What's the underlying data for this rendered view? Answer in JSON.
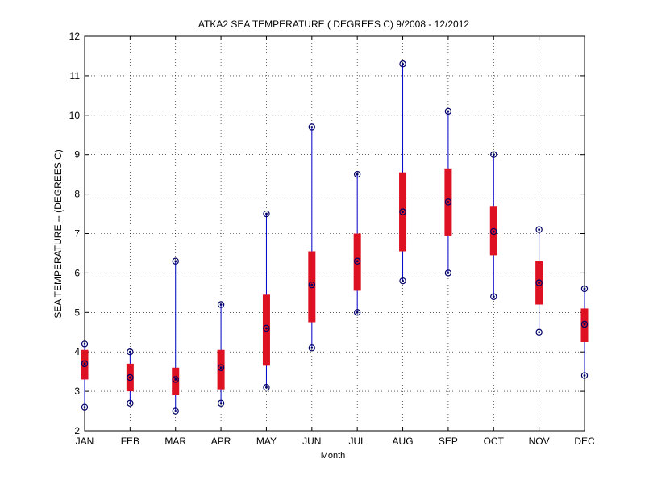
{
  "chart_data": {
    "type": "box",
    "title": "ATKA2  SEA TEMPERATURE ( DEGREES C) 9/2008 - 12/2012",
    "xlabel": "Month",
    "ylabel": "SEA TEMPERATURE -- (DEGREES C)",
    "ylim": [
      2,
      12
    ],
    "yticks": [
      "2",
      "3",
      "4",
      "5",
      "6",
      "7",
      "8",
      "9",
      "10",
      "11",
      "12"
    ],
    "grid": true,
    "categories": [
      "JAN",
      "FEB",
      "MAR",
      "APR",
      "MAY",
      "JUN",
      "JUL",
      "AUG",
      "SEP",
      "OCT",
      "NOV",
      "DEC"
    ],
    "series": [
      {
        "min": [
          2.6,
          2.7,
          2.5,
          2.7,
          3.1,
          4.1,
          5.0,
          5.8,
          6.0,
          5.4,
          4.5,
          3.4
        ],
        "q1": [
          3.3,
          3.0,
          2.9,
          3.05,
          3.65,
          4.75,
          5.55,
          6.55,
          6.95,
          6.45,
          5.2,
          4.25
        ],
        "median": [
          3.7,
          3.35,
          3.3,
          3.6,
          4.6,
          5.7,
          6.3,
          7.55,
          7.8,
          7.05,
          5.75,
          4.7
        ],
        "q3": [
          4.05,
          3.7,
          3.6,
          4.05,
          5.45,
          6.55,
          7.0,
          8.55,
          8.65,
          7.7,
          6.3,
          5.1
        ],
        "max": [
          4.2,
          4.0,
          6.3,
          5.2,
          7.5,
          9.7,
          8.5,
          11.3,
          10.1,
          9.0,
          7.1,
          5.6
        ]
      }
    ],
    "colors": {
      "box": "#dd1122",
      "whisker": "#0000cc",
      "marker": "#000066",
      "grid": "#000000"
    }
  }
}
